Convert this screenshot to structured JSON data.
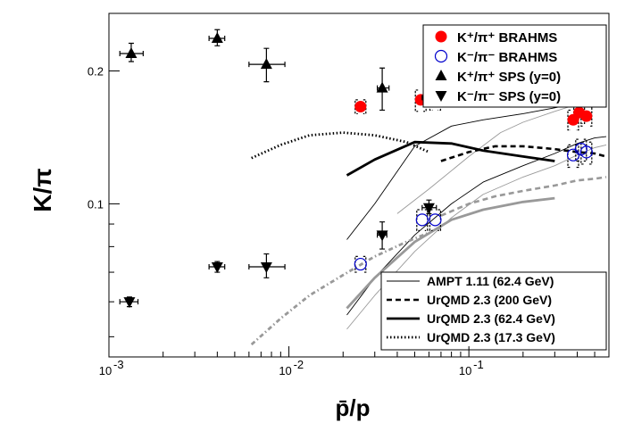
{
  "chart_data": {
    "type": "scatter",
    "title": "",
    "xlabel": "p̄/p",
    "ylabel": "K/π",
    "x_scale": "log",
    "y_scale": "log",
    "xlim": [
      0.001,
      0.6
    ],
    "ylim": [
      0.045,
      0.27
    ],
    "x_tick_labels": [
      {
        "value": 0.001,
        "label": "10",
        "exp": "-3"
      },
      {
        "value": 0.01,
        "label": "10",
        "exp": "-2"
      },
      {
        "value": 0.1,
        "label": "10",
        "exp": "-1"
      }
    ],
    "y_tick_labels": [
      {
        "value": 0.1,
        "label": "0.1"
      },
      {
        "value": 0.2,
        "label": "0.2"
      }
    ],
    "grid": false,
    "legend_placement": "top-right and bottom-right",
    "colors": {
      "brahms_red": "#ff0000",
      "brahms_blue": "#0000cc",
      "sps": "#000000",
      "model_black": "#000000",
      "model_gray": "#999999"
    },
    "legend_top": [
      {
        "label": "K⁺/π⁺ BRAHMS",
        "marker": "filled-circle-red"
      },
      {
        "label": "K⁻/π⁻ BRAHMS",
        "marker": "open-circle-blue"
      },
      {
        "label": "K⁺/π⁺ SPS (y=0)",
        "marker": "filled-triangle-up"
      },
      {
        "label": "K⁻/π⁻ SPS (y=0)",
        "marker": "filled-triangle-down"
      }
    ],
    "legend_bottom": [
      {
        "label": "AMPT 1.11 (62.4 GeV)",
        "line": "thin-solid"
      },
      {
        "label": "UrQMD 2.3 (200 GeV)",
        "line": "dashed"
      },
      {
        "label": "UrQMD 2.3 (62.4 GeV)",
        "line": "thick-solid"
      },
      {
        "label": "UrQMD 2.3 (17.3 GeV)",
        "line": "dotted"
      }
    ],
    "series": [
      {
        "name": "K⁺/π⁺ BRAHMS",
        "marker": "filled-circle-red",
        "points": [
          {
            "x": 0.025,
            "y": 0.166,
            "sys": [
              0.16,
              0.172
            ]
          },
          {
            "x": 0.054,
            "y": 0.172,
            "sys": [
              0.162,
              0.181
            ]
          },
          {
            "x": 0.065,
            "y": 0.173,
            "sys": [
              0.163,
              0.181
            ]
          },
          {
            "x": 0.38,
            "y": 0.155,
            "sys": [
              0.147,
              0.163
            ]
          },
          {
            "x": 0.41,
            "y": 0.161,
            "sys": [
              0.152,
              0.169
            ]
          },
          {
            "x": 0.45,
            "y": 0.158,
            "sys": [
              0.15,
              0.166
            ]
          }
        ]
      },
      {
        "name": "K⁻/π⁻ BRAHMS",
        "marker": "open-circle-blue",
        "points": [
          {
            "x": 0.025,
            "y": 0.073,
            "sys": [
              0.07,
              0.076
            ]
          },
          {
            "x": 0.055,
            "y": 0.092,
            "sys": [
              0.087,
              0.097
            ]
          },
          {
            "x": 0.065,
            "y": 0.092,
            "sys": [
              0.087,
              0.097
            ]
          },
          {
            "x": 0.38,
            "y": 0.129,
            "sys": [
              0.121,
              0.136
            ]
          },
          {
            "x": 0.42,
            "y": 0.133,
            "sys": [
              0.125,
              0.14
            ]
          },
          {
            "x": 0.45,
            "y": 0.131,
            "sys": [
              0.123,
              0.138
            ]
          }
        ]
      },
      {
        "name": "K⁺/π⁺ SPS (y=0)",
        "marker": "filled-triangle-up",
        "points": [
          {
            "x": 0.00133,
            "y": 0.219,
            "xerr": [
              0.00115,
              0.00155
            ],
            "yerr": [
              0.21,
              0.231
            ]
          },
          {
            "x": 0.004,
            "y": 0.237,
            "xerr": [
              0.0036,
              0.0044
            ],
            "yerr": [
              0.228,
              0.248
            ]
          },
          {
            "x": 0.0075,
            "y": 0.207,
            "xerr": [
              0.006,
              0.0095
            ],
            "yerr": [
              0.189,
              0.225
            ]
          },
          {
            "x": 0.033,
            "y": 0.183,
            "xerr": [
              0.031,
              0.036
            ],
            "yerr": [
              0.163,
              0.203
            ]
          },
          {
            "x": 0.06,
            "y": 0.174,
            "xerr": [
              0.055,
              0.066
            ],
            "yerr": [
              0.168,
              0.18
            ]
          }
        ]
      },
      {
        "name": "K⁻/π⁻ SPS (y=0)",
        "marker": "filled-triangle-down",
        "points": [
          {
            "x": 0.0013,
            "y": 0.06,
            "xerr": [
              0.00115,
              0.00145
            ],
            "yerr": [
              0.0585,
              0.0615
            ]
          },
          {
            "x": 0.004,
            "y": 0.072,
            "xerr": [
              0.0036,
              0.0044
            ],
            "yerr": [
              0.07,
              0.074
            ]
          },
          {
            "x": 0.0075,
            "y": 0.072,
            "xerr": [
              0.006,
              0.0095
            ],
            "yerr": [
              0.068,
              0.077
            ]
          },
          {
            "x": 0.033,
            "y": 0.085,
            "xerr": [
              0.031,
              0.035
            ],
            "yerr": [
              0.079,
              0.091
            ]
          },
          {
            "x": 0.06,
            "y": 0.098,
            "xerr": [
              0.055,
              0.066
            ],
            "yerr": [
              0.095,
              0.102
            ]
          }
        ]
      }
    ],
    "curves": [
      {
        "name": "AMPT 1.11 (62.4 GeV) K⁺/π⁺",
        "style": "thin-black",
        "x": [
          0.021,
          0.03,
          0.05,
          0.08,
          0.12,
          0.2,
          0.3,
          0.4,
          0.5,
          0.58
        ],
        "y": [
          0.083,
          0.1,
          0.135,
          0.15,
          0.155,
          0.16,
          0.165,
          0.169,
          0.172,
          0.17
        ]
      },
      {
        "name": "AMPT 1.11 (62.4 GeV) K⁻/π⁻",
        "style": "thin-black",
        "x": [
          0.021,
          0.03,
          0.05,
          0.08,
          0.12,
          0.2,
          0.3,
          0.4,
          0.5,
          0.58
        ],
        "y": [
          0.056,
          0.068,
          0.085,
          0.1,
          0.112,
          0.122,
          0.13,
          0.137,
          0.141,
          0.142
        ]
      },
      {
        "name": "AMPT 1.11 (62.4 GeV) gray K⁺/π⁺",
        "style": "thin-gray",
        "x": [
          0.04,
          0.06,
          0.1,
          0.15,
          0.2,
          0.3,
          0.4,
          0.5,
          0.58
        ],
        "y": [
          0.095,
          0.108,
          0.128,
          0.145,
          0.153,
          0.162,
          0.168,
          0.172,
          0.176
        ]
      },
      {
        "name": "AMPT 1.11 (62.4 GeV) gray K⁻/π⁻",
        "style": "thin-gray",
        "x": [
          0.021,
          0.03,
          0.05,
          0.08,
          0.12,
          0.2,
          0.3,
          0.4,
          0.5,
          0.58
        ],
        "y": [
          0.052,
          0.062,
          0.078,
          0.093,
          0.105,
          0.115,
          0.122,
          0.129,
          0.134,
          0.136
        ]
      },
      {
        "name": "UrQMD 2.3 (200 GeV) K⁺/π⁺",
        "style": "dashed-black",
        "x": [
          0.07,
          0.1,
          0.14,
          0.2,
          0.3,
          0.4,
          0.5,
          0.58
        ],
        "y": [
          0.125,
          0.131,
          0.135,
          0.135,
          0.133,
          0.131,
          0.13,
          0.128
        ]
      },
      {
        "name": "UrQMD 2.3 (200 GeV) K⁻/π⁻",
        "style": "dashed-gray",
        "x": [
          0.07,
          0.1,
          0.14,
          0.2,
          0.3,
          0.4,
          0.5,
          0.58
        ],
        "y": [
          0.094,
          0.1,
          0.104,
          0.107,
          0.11,
          0.113,
          0.114,
          0.115
        ]
      },
      {
        "name": "UrQMD 2.3 (62.4 GeV) K⁺/π⁺",
        "style": "thick-black",
        "x": [
          0.021,
          0.03,
          0.05,
          0.08,
          0.12,
          0.2,
          0.3
        ],
        "y": [
          0.116,
          0.126,
          0.138,
          0.137,
          0.132,
          0.128,
          0.125
        ]
      },
      {
        "name": "UrQMD 2.3 (62.4 GeV) K⁻/π⁻",
        "style": "thick-gray",
        "x": [
          0.021,
          0.03,
          0.05,
          0.08,
          0.12,
          0.2,
          0.3
        ],
        "y": [
          0.058,
          0.068,
          0.082,
          0.092,
          0.097,
          0.101,
          0.103
        ]
      },
      {
        "name": "UrQMD 2.3 (17.3 GeV) K⁺/π⁺",
        "style": "dotted-black",
        "x": [
          0.0062,
          0.009,
          0.013,
          0.02,
          0.03,
          0.045,
          0.06
        ],
        "y": [
          0.127,
          0.136,
          0.143,
          0.145,
          0.143,
          0.138,
          0.131
        ]
      },
      {
        "name": "UrQMD 2.3 (17.3 GeV) K⁻/π⁻",
        "style": "dotted-gray",
        "x": [
          0.0062,
          0.009,
          0.013,
          0.02,
          0.03,
          0.045,
          0.06
        ],
        "y": [
          0.048,
          0.055,
          0.062,
          0.069,
          0.076,
          0.082,
          0.086
        ]
      }
    ]
  }
}
